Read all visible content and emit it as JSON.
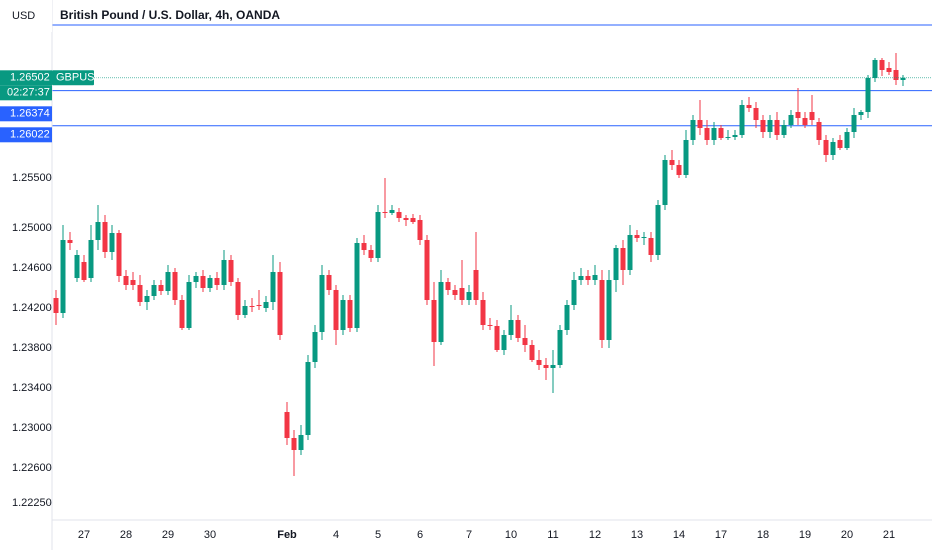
{
  "chart_data": {
    "type": "candlestick",
    "title": "British Pound / U.S. Dollar, 4h, OANDA",
    "currency": "USD",
    "symbol": "GBPUSD",
    "countdown": "02:27:37",
    "last_price": 1.26502,
    "up_color": "#089981",
    "down_color": "#f23645",
    "ylim": [
      1.2208,
      1.2728
    ],
    "yticks": [
      {
        "value": 1.255,
        "label": "1.25500"
      },
      {
        "value": 1.25,
        "label": "1.25000"
      },
      {
        "value": 1.246,
        "label": "1.24600"
      },
      {
        "value": 1.242,
        "label": "1.24200"
      },
      {
        "value": 1.238,
        "label": "1.23800"
      },
      {
        "value": 1.234,
        "label": "1.23400"
      },
      {
        "value": 1.23,
        "label": "1.23000"
      },
      {
        "value": 1.226,
        "label": "1.22600"
      },
      {
        "value": 1.2225,
        "label": "1.22250"
      }
    ],
    "horizontal_lines": [
      {
        "price": 1.2703,
        "color": "#2962ff"
      },
      {
        "price": 1.26374,
        "color": "#2962ff"
      },
      {
        "price": 1.26022,
        "color": "#2962ff"
      }
    ],
    "categories": [
      null,
      null,
      null,
      null,
      "27",
      null,
      null,
      null,
      null,
      null,
      "28",
      null,
      null,
      null,
      null,
      null,
      "29",
      null,
      null,
      null,
      null,
      null,
      "30",
      null,
      null,
      null,
      null,
      null,
      null,
      null,
      null,
      null,
      null,
      "Feb",
      null,
      null,
      null,
      null,
      null,
      null,
      "4",
      null,
      null,
      null,
      null,
      null,
      "5",
      null,
      null,
      null,
      null,
      null,
      "6",
      null,
      null,
      null,
      null,
      null,
      null,
      "7",
      null,
      null,
      null,
      null,
      null,
      "10",
      null,
      null,
      null,
      null,
      null,
      "11",
      null,
      null,
      null,
      null,
      null,
      "12",
      null,
      null,
      null,
      null,
      null,
      "13",
      null,
      null,
      null,
      null,
      null,
      "14",
      null,
      null,
      null,
      null,
      null,
      "17",
      null,
      null,
      null,
      null,
      null,
      "18",
      null,
      null,
      null,
      null,
      null,
      "19",
      null,
      null,
      null,
      null,
      null,
      "20",
      null,
      null,
      null,
      null,
      null,
      "21",
      null,
      null
    ],
    "open": [
      1.243,
      1.2415,
      1.2488,
      1.245,
      1.2466,
      1.245,
      1.2488,
      1.2506,
      1.2476,
      1.2495,
      1.2452,
      1.2448,
      1.2443,
      1.2426,
      1.2432,
      1.2443,
      1.2437,
      1.2456,
      1.2428,
      1.24,
      1.2446,
      1.2452,
      1.244,
      1.245,
      1.2443,
      1.2468,
      1.2446,
      1.2413,
      1.2422,
      1.2423,
      1.242,
      1.2426,
      1.2456,
      1.2316,
      1.229,
      1.2278,
      1.2293,
      1.2366,
      1.2396,
      1.2453,
      1.2438,
      1.2398,
      1.2428,
      1.24,
      1.2485,
      1.2478,
      1.247,
      1.2516,
      1.2515,
      1.2516,
      1.251,
      1.251,
      1.2508,
      1.2488,
      1.2428,
      1.2386,
      1.2446,
      1.2438,
      1.244,
      1.2428,
      1.2458,
      1.2428,
      1.2403,
      1.2402,
      1.2378,
      1.2393,
      1.2408,
      1.239,
      1.2383,
      1.2368,
      1.2363,
      1.236,
      1.2363,
      1.2398,
      1.2423,
      1.2448,
      1.2452,
      1.2448,
      1.2448,
      1.2388,
      1.2448,
      1.248,
      1.2458,
      1.2493,
      1.249,
      1.249,
      1.2473,
      1.2523,
      1.2568,
      1.2563,
      1.2553,
      1.2588,
      1.2608,
      1.26,
      1.2588,
      1.26,
      1.259,
      1.2591,
      1.2593,
      1.2623,
      1.262,
      1.2608,
      1.2596,
      1.2608,
      1.2593,
      1.2603,
      1.2616,
      1.261,
      1.2616,
      1.2606,
      1.2588,
      1.2573,
      1.2588,
      1.258,
      1.2596,
      1.2613,
      1.2616,
      1.265,
      1.2668,
      1.266,
      1.2658,
      1.2648
    ],
    "high": [
      1.2438,
      1.2503,
      1.2496,
      1.2478,
      1.2473,
      1.2503,
      1.2523,
      1.2513,
      1.2503,
      1.2498,
      1.2458,
      1.2456,
      1.2453,
      1.2438,
      1.2448,
      1.2448,
      1.2463,
      1.246,
      1.2433,
      1.2453,
      1.2456,
      1.2458,
      1.2453,
      1.2456,
      1.2478,
      1.2473,
      1.245,
      1.2428,
      1.243,
      1.2438,
      1.2432,
      1.2473,
      1.2466,
      1.2326,
      1.2298,
      1.2303,
      1.2373,
      1.2403,
      1.2463,
      1.2458,
      1.2443,
      1.2433,
      1.2433,
      1.249,
      1.2493,
      1.2483,
      1.2523,
      1.255,
      1.2523,
      1.252,
      1.2513,
      1.2514,
      1.2513,
      1.2493,
      1.2446,
      1.2458,
      1.245,
      1.2443,
      1.2468,
      1.2443,
      1.2496,
      1.2436,
      1.241,
      1.2408,
      1.2398,
      1.2423,
      1.2413,
      1.2403,
      1.2388,
      1.2378,
      1.237,
      1.2378,
      1.2403,
      1.2428,
      1.2456,
      1.246,
      1.2458,
      1.2463,
      1.2458,
      1.2458,
      1.2483,
      1.2488,
      1.2503,
      1.2498,
      1.2496,
      1.2496,
      1.2528,
      1.2573,
      1.2578,
      1.2568,
      1.2598,
      1.2613,
      1.2628,
      1.2608,
      1.2606,
      1.2603,
      1.2598,
      1.2598,
      1.2628,
      1.2631,
      1.2626,
      1.2613,
      1.2613,
      1.2616,
      1.2608,
      1.2618,
      1.264,
      1.2616,
      1.2633,
      1.261,
      1.2593,
      1.259,
      1.2593,
      1.26,
      1.262,
      1.2618,
      1.2653,
      1.267,
      1.267,
      1.2666,
      1.2675,
      1.2653
    ],
    "low": [
      1.2403,
      1.241,
      1.2478,
      1.2446,
      1.2446,
      1.2446,
      1.2478,
      1.247,
      1.2468,
      1.2446,
      1.2438,
      1.2438,
      1.2422,
      1.2418,
      1.2428,
      1.2433,
      1.2433,
      1.2423,
      1.2398,
      1.2398,
      1.244,
      1.2436,
      1.2436,
      1.2438,
      1.2438,
      1.2442,
      1.2408,
      1.241,
      1.2416,
      1.2418,
      1.2416,
      1.2418,
      1.2388,
      1.2283,
      1.2252,
      1.2273,
      1.2288,
      1.236,
      1.2388,
      1.2433,
      1.2383,
      1.2393,
      1.2396,
      1.2396,
      1.2473,
      1.2466,
      1.2466,
      1.251,
      1.2513,
      1.2506,
      1.2502,
      1.2504,
      1.2483,
      1.2423,
      1.2362,
      1.2383,
      1.2433,
      1.2428,
      1.2423,
      1.2423,
      1.2423,
      1.2398,
      1.2398,
      1.2376,
      1.2373,
      1.2388,
      1.2386,
      1.2376,
      1.2366,
      1.2358,
      1.2348,
      1.2335,
      1.236,
      1.2393,
      1.2418,
      1.2443,
      1.2443,
      1.2443,
      1.238,
      1.238,
      1.2436,
      1.2443,
      1.2453,
      1.2486,
      1.2483,
      1.2466,
      1.2468,
      1.2518,
      1.2558,
      1.255,
      1.255,
      1.2583,
      1.2593,
      1.2583,
      1.2583,
      1.2588,
      1.2588,
      1.2588,
      1.259,
      1.2616,
      1.26,
      1.259,
      1.259,
      1.2588,
      1.259,
      1.26,
      1.2603,
      1.26,
      1.2603,
      1.2583,
      1.2566,
      1.2568,
      1.2578,
      1.2578,
      1.259,
      1.2608,
      1.261,
      1.2646,
      1.2652,
      1.2653,
      1.2643,
      1.2642
    ],
    "close": [
      1.2415,
      1.2488,
      1.2485,
      1.2473,
      1.2448,
      1.2488,
      1.2506,
      1.2476,
      1.2495,
      1.2452,
      1.2443,
      1.2443,
      1.2426,
      1.2432,
      1.2443,
      1.2437,
      1.2456,
      1.2428,
      1.24,
      1.2446,
      1.2452,
      1.244,
      1.245,
      1.2443,
      1.2468,
      1.2446,
      1.2413,
      1.2422,
      1.2421,
      1.2422,
      1.2426,
      1.2456,
      1.2393,
      1.229,
      1.2278,
      1.2293,
      1.2366,
      1.2396,
      1.2453,
      1.2438,
      1.2398,
      1.2428,
      1.24,
      1.2485,
      1.2478,
      1.247,
      1.2516,
      1.2515,
      1.2518,
      1.251,
      1.2508,
      1.2506,
      1.2488,
      1.2428,
      1.2386,
      1.2446,
      1.2438,
      1.2433,
      1.2428,
      1.2436,
      1.2428,
      1.2403,
      1.2402,
      1.2378,
      1.2393,
      1.2408,
      1.239,
      1.2383,
      1.2368,
      1.2363,
      1.236,
      1.2363,
      1.2398,
      1.2423,
      1.2448,
      1.2452,
      1.2448,
      1.2453,
      1.2388,
      1.2448,
      1.248,
      1.2458,
      1.2493,
      1.249,
      1.2491,
      1.2473,
      1.2523,
      1.2568,
      1.2563,
      1.2553,
      1.2588,
      1.2608,
      1.26,
      1.2588,
      1.26,
      1.259,
      1.2591,
      1.2593,
      1.2623,
      1.262,
      1.2608,
      1.2596,
      1.2608,
      1.2593,
      1.2603,
      1.2613,
      1.261,
      1.2603,
      1.2608,
      1.2588,
      1.2573,
      1.2586,
      1.258,
      1.2596,
      1.2613,
      1.2616,
      1.265,
      1.2668,
      1.2658,
      1.2656,
      1.2648,
      1.26502
    ]
  }
}
